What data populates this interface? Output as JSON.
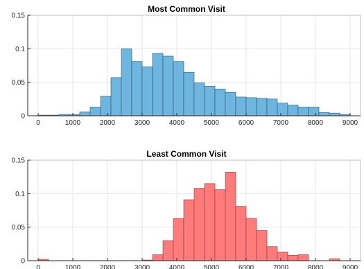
{
  "chart_data": [
    {
      "type": "bar",
      "title": "Most Common Visit",
      "xlabel": "",
      "ylabel": "",
      "xlim": [
        -300,
        9300
      ],
      "ylim": [
        0,
        0.15
      ],
      "x_ticks": [
        0,
        1000,
        2000,
        3000,
        4000,
        5000,
        6000,
        7000,
        8000,
        9000
      ],
      "x_tick_labels": [
        "0",
        "1000",
        "2000",
        "3000",
        "4000",
        "5000",
        "6000",
        "7000",
        "8000",
        "9000"
      ],
      "y_ticks": [
        0,
        0.05,
        0.1,
        0.15
      ],
      "y_tick_labels": [
        "0",
        "0.05",
        "0.1",
        "0.15"
      ],
      "grid": true,
      "bin_width": 300,
      "bin_edges_start": 0,
      "values": [
        0.001,
        0.001,
        0.002,
        0.002,
        0.006,
        0.013,
        0.029,
        0.057,
        0.1,
        0.081,
        0.073,
        0.093,
        0.089,
        0.081,
        0.065,
        0.049,
        0.044,
        0.04,
        0.035,
        0.028,
        0.027,
        0.026,
        0.025,
        0.019,
        0.016,
        0.013,
        0.013,
        0.005,
        0.004,
        0.002
      ],
      "color": "#6cb6df",
      "edge_color": "#2f4f66"
    },
    {
      "type": "bar",
      "title": "Least Common Visit",
      "xlabel": "",
      "ylabel": "",
      "xlim": [
        -300,
        9300
      ],
      "ylim": [
        0,
        0.15
      ],
      "x_ticks": [
        0,
        1000,
        2000,
        3000,
        4000,
        5000,
        6000,
        7000,
        8000,
        9000
      ],
      "x_tick_labels": [
        "0",
        "1000",
        "2000",
        "3000",
        "4000",
        "5000",
        "6000",
        "7000",
        "8000",
        "9000"
      ],
      "y_ticks": [
        0,
        0.05,
        0.1,
        0.15
      ],
      "y_tick_labels": [
        "0",
        "0.05",
        "0.1",
        "0.15"
      ],
      "grid": true,
      "bin_width": 300,
      "bin_edges_start": 0,
      "values": [
        0.002,
        0,
        0,
        0,
        0,
        0,
        0,
        0,
        0,
        0,
        0.001,
        0.009,
        0.03,
        0.063,
        0.091,
        0.108,
        0.115,
        0.106,
        0.132,
        0.081,
        0.063,
        0.045,
        0.021,
        0.013,
        0.008,
        0.009,
        0,
        0,
        0.003,
        0
      ],
      "color": "#ff7a7a",
      "edge_color": "#8a3b3b"
    }
  ]
}
